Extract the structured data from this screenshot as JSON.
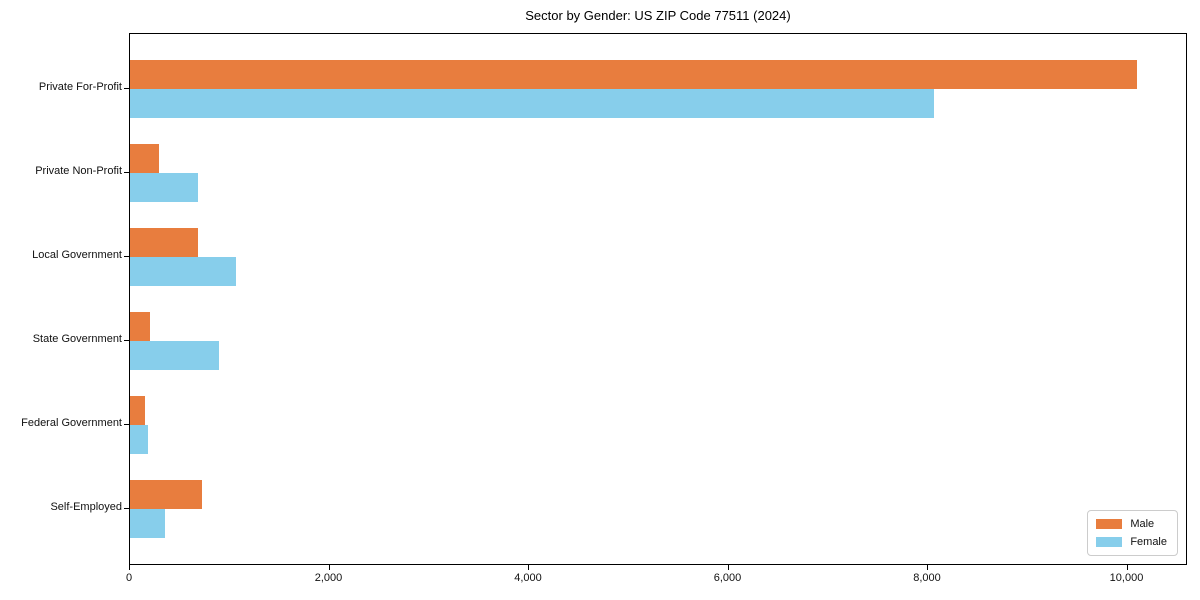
{
  "chart_data": {
    "type": "bar",
    "orientation": "horizontal",
    "title": "Sector by Gender: US ZIP Code 77511 (2024)",
    "categories": [
      "Private For-Profit",
      "Private Non-Profit",
      "Local Government",
      "State Government",
      "Federal Government",
      "Self-Employed"
    ],
    "series": [
      {
        "name": "Male",
        "color": "#E87D3E",
        "values": [
          10100,
          290,
          680,
          200,
          150,
          720
        ]
      },
      {
        "name": "Female",
        "color": "#87CEEB",
        "values": [
          8060,
          680,
          1060,
          890,
          180,
          350
        ]
      }
    ],
    "xlabel": "",
    "ylabel": "",
    "xlim": [
      0,
      10600
    ],
    "x_ticks": {
      "values": [
        0,
        2000,
        4000,
        6000,
        8000,
        10000
      ],
      "labels": [
        "0",
        "2,000",
        "4,000",
        "6,000",
        "8,000",
        "10,000"
      ]
    },
    "grid": false,
    "legend": {
      "position": "lower right"
    },
    "colors": {
      "axis": "#000000",
      "text": "#111111",
      "legend_border": "#cccccc"
    }
  }
}
